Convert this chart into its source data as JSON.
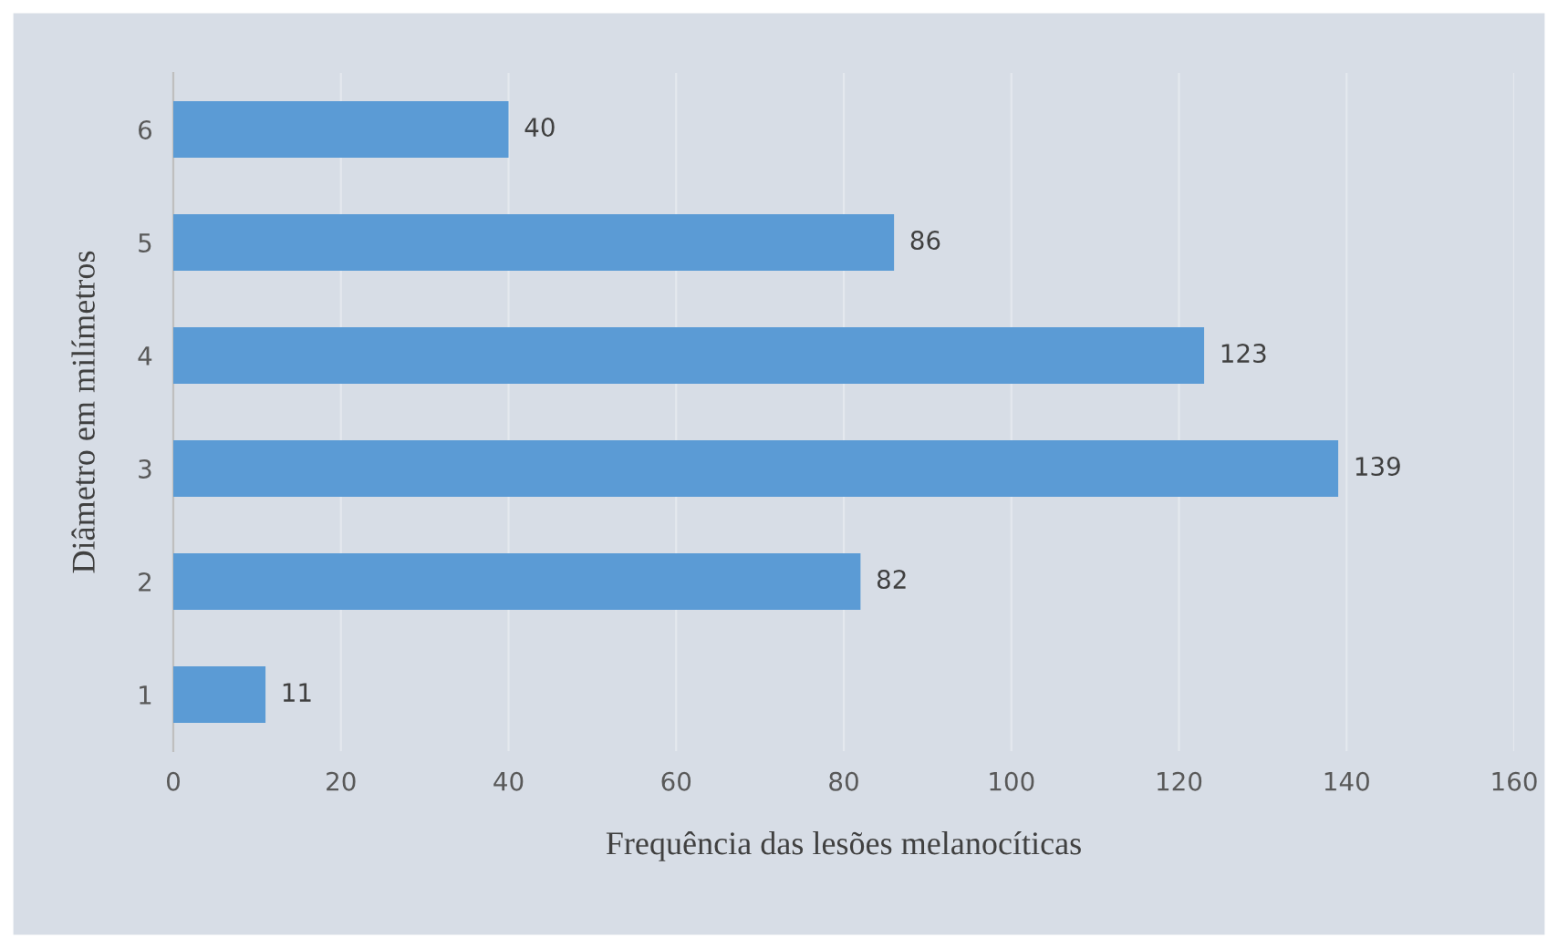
{
  "chart_data": {
    "type": "bar",
    "orientation": "horizontal",
    "xlabel": "Frequência das lesões melanocíticas",
    "ylabel": "Diâmetro em milímetros",
    "categories": [
      "6",
      "5",
      "4",
      "3",
      "2",
      "1"
    ],
    "values": [
      40,
      86,
      123,
      139,
      82,
      11
    ],
    "color": "#5b9bd5",
    "xlim": [
      0,
      160
    ],
    "xticks": [
      0,
      20,
      40,
      60,
      80,
      100,
      120,
      140,
      160
    ],
    "grid": "x",
    "data_labels": true
  }
}
